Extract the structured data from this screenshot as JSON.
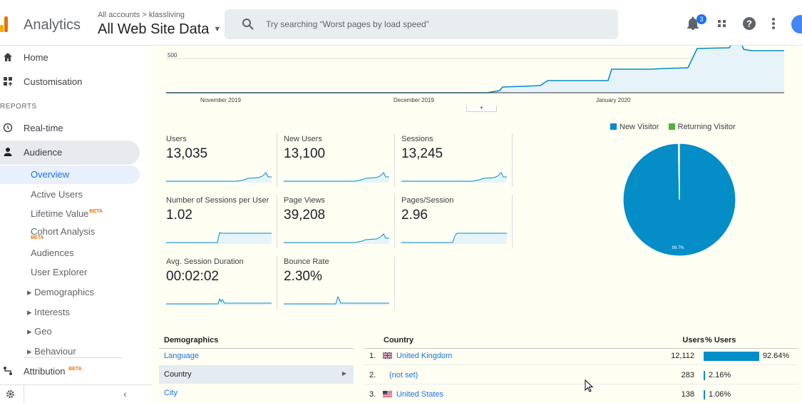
{
  "header": {
    "app_name": "Analytics",
    "breadcrumb": "All accounts > klassliving",
    "property": "All Web Site Data",
    "search_placeholder": "Try searching “Worst pages by load speed”",
    "notification_count": "3",
    "icons": [
      "analytics-logo",
      "search-icon",
      "bell-icon",
      "apps-grid-icon",
      "help-icon",
      "more-vert-icon",
      "avatar"
    ]
  },
  "sidebar": {
    "home": "Home",
    "customisation": "Customisation",
    "reports_section": "REPORTS",
    "realtime": "Real-time",
    "audience": "Audience",
    "audience_items": {
      "overview": "Overview",
      "active_users": "Active Users",
      "lifetime_value": "Lifetime Value",
      "cohort_analysis": "Cohort Analysis",
      "audiences": "Audiences",
      "user_explorer": "User Explorer",
      "demographics": "▸ Demographics",
      "interests": "▸ Interests",
      "geo": "▸ Geo",
      "behaviour": "▸ Behaviour"
    },
    "attribution": "Attribution",
    "beta_label": "BETA",
    "collapse_icon": "‹"
  },
  "overview_chart": {
    "y_tick": "500",
    "x_ticks": [
      "November 2019",
      "December 2019",
      "January 2020"
    ]
  },
  "metrics": [
    {
      "name": "Users",
      "value": "13,035"
    },
    {
      "name": "New Users",
      "value": "13,100"
    },
    {
      "name": "Sessions",
      "value": "13,245"
    },
    {
      "name": "Number of Sessions per User",
      "value": "1.02"
    },
    {
      "name": "Page Views",
      "value": "39,208"
    },
    {
      "name": "Pages/Session",
      "value": "2.96"
    },
    {
      "name": "Avg. Session Duration",
      "value": "00:02:02"
    },
    {
      "name": "Bounce Rate",
      "value": "2.30%"
    }
  ],
  "pie": {
    "legend": [
      {
        "label": "New Visitor",
        "color": "#058dc7"
      },
      {
        "label": "Returning Visitor",
        "color": "#50b432"
      }
    ],
    "new_visitor_pct": 99.7,
    "slice_label": "99.7%"
  },
  "demographics": {
    "header": "Demographics",
    "rows": [
      "Language",
      "Country",
      "City"
    ],
    "selected": "Country"
  },
  "country_table": {
    "headers": {
      "country": "Country",
      "users": "Users",
      "pct_users": "% Users"
    },
    "rows": [
      {
        "idx": "1.",
        "country": "United Kingdom",
        "flag": "uk-flag-icon",
        "users": "12,112",
        "pct": "92.64%",
        "share": 0.9264
      },
      {
        "idx": "2.",
        "country": "(not set)",
        "flag": "",
        "users": "283",
        "pct": "2.16%",
        "share": 0.0216
      },
      {
        "idx": "3.",
        "country": "United States",
        "flag": "us-flag-icon",
        "users": "138",
        "pct": "1.06%",
        "share": 0.0106
      }
    ]
  }
}
